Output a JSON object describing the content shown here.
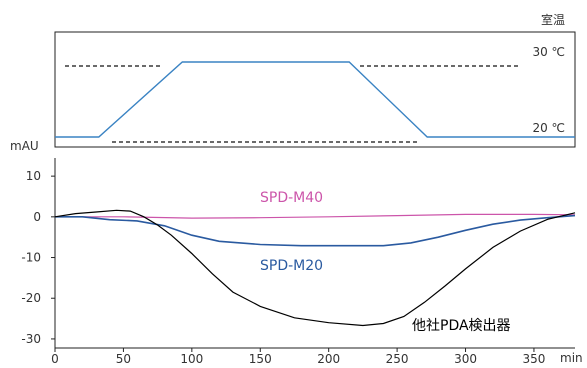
{
  "chart_data": [
    {
      "type": "line",
      "title": "",
      "corner_label": "室温",
      "reference_lines": [
        {
          "label": "30 ℃",
          "value": 30
        },
        {
          "label": "20 ℃",
          "value": 20
        }
      ],
      "series": [
        {
          "name": "",
          "color": "#3a83c3",
          "points": [
            [
              0,
              20
            ],
            [
              32,
              20
            ],
            [
              93,
              30
            ],
            [
              215,
              30
            ],
            [
              272,
              20
            ],
            [
              380,
              20
            ]
          ]
        }
      ]
    },
    {
      "type": "line",
      "title": "",
      "ylabel": "mAU",
      "xlabel": "min",
      "xlim": [
        0,
        380
      ],
      "ylim": [
        -31,
        12
      ],
      "xticks": [
        0,
        50,
        100,
        150,
        200,
        250,
        300,
        350
      ],
      "yticks": [
        10,
        0,
        -10,
        -20,
        -30
      ],
      "series": [
        {
          "name": "SPD-M40",
          "color": "#cc55aa",
          "points": [
            [
              0,
              0
            ],
            [
              50,
              0
            ],
            [
              100,
              -0.3
            ],
            [
              150,
              -0.2
            ],
            [
              200,
              0
            ],
            [
              250,
              0.3
            ],
            [
              300,
              0.6
            ],
            [
              350,
              0.6
            ],
            [
              380,
              0.5
            ]
          ]
        },
        {
          "name": "SPD-M20",
          "color": "#2a5aa0",
          "points": [
            [
              0,
              0
            ],
            [
              20,
              0
            ],
            [
              40,
              -0.7
            ],
            [
              60,
              -1.0
            ],
            [
              80,
              -2.2
            ],
            [
              100,
              -4.5
            ],
            [
              120,
              -6.0
            ],
            [
              150,
              -6.8
            ],
            [
              180,
              -7.1
            ],
            [
              210,
              -7.1
            ],
            [
              240,
              -7.1
            ],
            [
              260,
              -6.4
            ],
            [
              280,
              -5.0
            ],
            [
              300,
              -3.3
            ],
            [
              320,
              -1.8
            ],
            [
              340,
              -0.8
            ],
            [
              360,
              -0.2
            ],
            [
              380,
              0.3
            ]
          ]
        },
        {
          "name": "他社PDA検出器",
          "color": "#000000",
          "points": [
            [
              0,
              0
            ],
            [
              15,
              0.8
            ],
            [
              30,
              1.2
            ],
            [
              45,
              1.6
            ],
            [
              55,
              1.4
            ],
            [
              65,
              0
            ],
            [
              75,
              -2
            ],
            [
              85,
              -4.5
            ],
            [
              100,
              -9
            ],
            [
              115,
              -14
            ],
            [
              130,
              -18.5
            ],
            [
              150,
              -22
            ],
            [
              175,
              -24.8
            ],
            [
              200,
              -26
            ],
            [
              225,
              -26.7
            ],
            [
              240,
              -26.2
            ],
            [
              255,
              -24.5
            ],
            [
              270,
              -21
            ],
            [
              285,
              -17
            ],
            [
              300,
              -12.8
            ],
            [
              320,
              -7.5
            ],
            [
              340,
              -3.5
            ],
            [
              360,
              -0.6
            ],
            [
              380,
              1
            ]
          ]
        }
      ]
    }
  ]
}
